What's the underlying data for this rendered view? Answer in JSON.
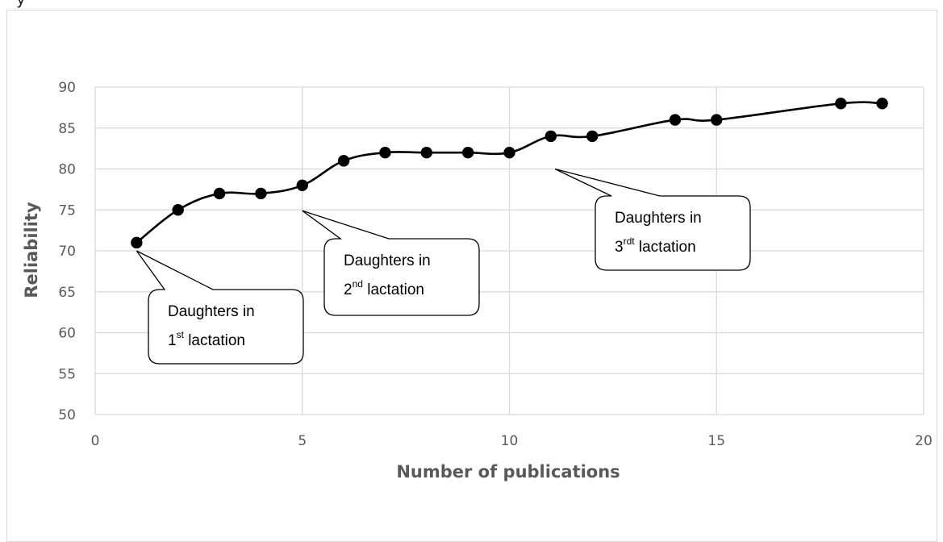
{
  "top_clipped_text": "y",
  "chart_data": {
    "type": "line",
    "xlabel": "Number of publications",
    "ylabel": "Reliability",
    "xlim": [
      0,
      20
    ],
    "ylim": [
      50,
      90
    ],
    "x_ticks": [
      0,
      5,
      10,
      15,
      20
    ],
    "y_ticks": [
      50,
      55,
      60,
      65,
      70,
      75,
      80,
      85,
      90
    ],
    "grid": true,
    "legend": "none",
    "series": [
      {
        "marker": "circle",
        "color": "#000000",
        "x": [
          1,
          2,
          3,
          4,
          5,
          6,
          7,
          8,
          9,
          10,
          11,
          12,
          14,
          15,
          18,
          19
        ],
        "y": [
          71,
          75,
          77,
          77,
          78,
          81,
          82,
          82,
          82,
          82,
          84,
          84,
          86,
          86,
          88,
          88
        ]
      }
    ],
    "annotations": [
      {
        "line1": "Daughters in",
        "prefix": "1",
        "sup": "st",
        "suffix": " lactation",
        "point_x": 1,
        "point_y": 70
      },
      {
        "line1": "Daughters in",
        "prefix": "2",
        "sup": "nd",
        "suffix": " lactation",
        "point_x": 5,
        "point_y": 74.9
      },
      {
        "line1": "Daughters in",
        "prefix": "3",
        "sup": "rdt",
        "suffix": " lactation",
        "point_x": 11.1,
        "point_y": 80
      }
    ]
  }
}
